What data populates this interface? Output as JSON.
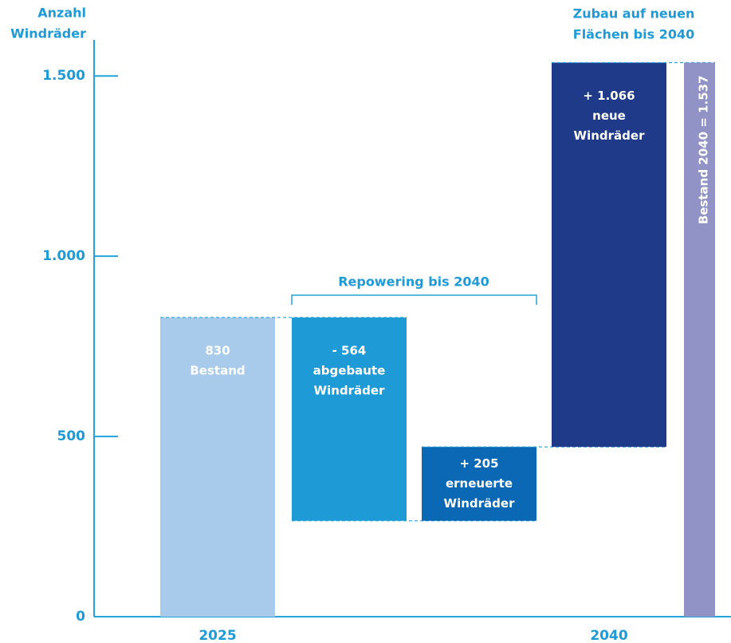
{
  "chart_data": {
    "type": "waterfall",
    "ylabel": [
      "Anzahl",
      "Windräder"
    ],
    "categories": [
      "2025",
      null,
      null,
      "2040",
      null
    ],
    "measure": [
      "absolute",
      "relative",
      "relative",
      "relative",
      "total"
    ],
    "values": [
      830,
      -564,
      205,
      1066,
      1537
    ],
    "value_labels": [
      "830",
      "- 564",
      "+ 205",
      "+ 1.066",
      "1.537"
    ],
    "descriptions": [
      [
        "Bestand"
      ],
      [
        "abgebaute",
        "Windräder"
      ],
      [
        "erneuerte",
        "Windräder"
      ],
      [
        "neue",
        "Windräder"
      ],
      [
        "Bestand 2040 ="
      ]
    ],
    "colors": [
      "#a8cbec",
      "#1e9bd7",
      "#0a68b4",
      "#1e3a88",
      "#9193c7"
    ],
    "annotations": {
      "repowering": "Repowering bis 2040",
      "zubau": [
        "Zubau auf neuen",
        "Flächen bis 2040"
      ]
    },
    "ylim": [
      0,
      1600
    ],
    "yticks": [
      0,
      500,
      {
        "value": 1000,
        "label": "1.000"
      },
      {
        "value": 1500,
        "label": "1.500"
      }
    ],
    "axis_color": "#22a3dd"
  }
}
